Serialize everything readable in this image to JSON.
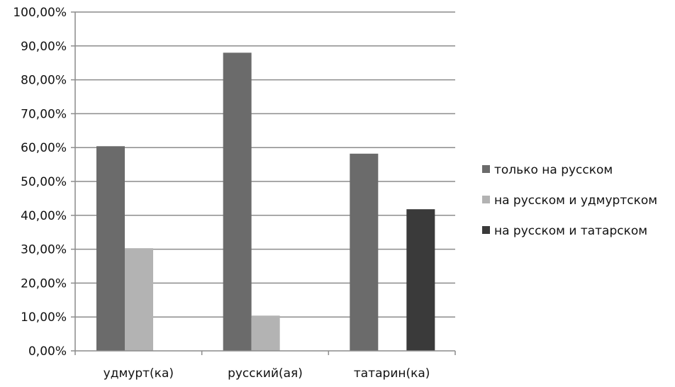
{
  "chart_data": {
    "type": "bar",
    "categories": [
      "удмурт(ка)",
      "русский(ая)",
      "татарин(ка)"
    ],
    "series": [
      {
        "name": "только на русском",
        "values": [
          60.4,
          88.0,
          58.2
        ],
        "color": "#6b6b6b"
      },
      {
        "name": "на русском и удмуртском",
        "values": [
          30.3,
          10.4,
          null
        ],
        "color": "#b3b3b3"
      },
      {
        "name": "на русском и татарском",
        "values": [
          null,
          null,
          41.8
        ],
        "color": "#3a3a3a"
      }
    ],
    "ylim": [
      0,
      100
    ],
    "yticks": [
      0,
      10,
      20,
      30,
      40,
      50,
      60,
      70,
      80,
      90,
      100
    ],
    "ytick_labels": [
      "0,00%",
      "10,00%",
      "20,00%",
      "30,00%",
      "40,00%",
      "50,00%",
      "60,00%",
      "70,00%",
      "80,00%",
      "90,00%",
      "100,00%"
    ],
    "title": "",
    "xlabel": "",
    "ylabel": "",
    "grid": true,
    "legend_position": "right"
  }
}
